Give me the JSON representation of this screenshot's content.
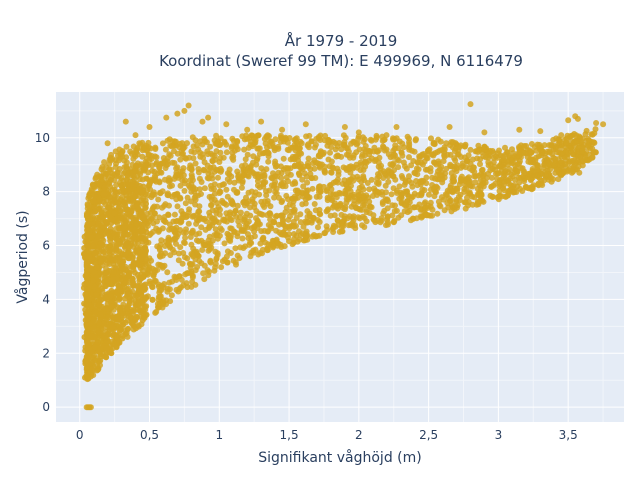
{
  "chart_data": {
    "type": "scatter",
    "title_lines": [
      "År 1979 - 2019",
      "Koordinat (Sweref 99 TM): E 499969, N 6116479"
    ],
    "xlabel": "Signifikant våghöjd (m)",
    "ylabel": "Vågperiod (s)",
    "xlim": [
      -0.17,
      3.9
    ],
    "ylim": [
      -0.55,
      11.7
    ],
    "x_ticks": [
      0,
      0.5,
      1,
      1.5,
      2,
      2.5,
      3,
      3.5
    ],
    "x_tick_labels": [
      "0",
      "0,5",
      "1",
      "1,5",
      "2",
      "2,5",
      "3",
      "3,5"
    ],
    "y_ticks": [
      0,
      2,
      4,
      6,
      8,
      10
    ],
    "y_tick_labels": [
      "0",
      "2",
      "4",
      "6",
      "8",
      "10"
    ],
    "grid": true,
    "marker_color": "#d4a421",
    "background_color": "#e5ecf6",
    "envelope": {
      "x": [
        0.05,
        0.1,
        0.2,
        0.3,
        0.5,
        0.75,
        1.0,
        1.25,
        1.5,
        1.75,
        2.0,
        2.25,
        2.5,
        2.75,
        3.0,
        3.25,
        3.5,
        3.7
      ],
      "y_lower": [
        1.0,
        1.2,
        1.8,
        2.4,
        3.3,
        4.3,
        5.0,
        5.6,
        6.0,
        6.4,
        6.6,
        6.8,
        7.0,
        7.3,
        7.7,
        8.1,
        8.6,
        9.3
      ],
      "y_upper": [
        7.5,
        8.6,
        9.3,
        9.7,
        9.9,
        10.0,
        10.1,
        10.1,
        10.1,
        10.1,
        10.1,
        10.1,
        10.0,
        9.8,
        9.6,
        9.8,
        10.1,
        10.4
      ]
    },
    "points": [
      [
        0.05,
        0
      ],
      [
        0.06,
        0
      ],
      [
        0.07,
        0
      ],
      [
        0.08,
        0
      ],
      [
        0.33,
        10.6
      ],
      [
        0.5,
        10.4
      ],
      [
        0.62,
        10.75
      ],
      [
        0.75,
        11.0
      ],
      [
        0.78,
        11.2
      ],
      [
        0.7,
        10.9
      ],
      [
        0.88,
        10.6
      ],
      [
        0.92,
        10.75
      ],
      [
        1.05,
        10.5
      ],
      [
        1.3,
        10.6
      ],
      [
        1.45,
        10.3
      ],
      [
        1.62,
        10.5
      ],
      [
        1.9,
        10.4
      ],
      [
        2.27,
        10.4
      ],
      [
        2.8,
        11.25
      ],
      [
        2.65,
        10.4
      ],
      [
        3.15,
        10.3
      ],
      [
        3.3,
        10.25
      ],
      [
        3.45,
        10.1
      ],
      [
        3.5,
        10.65
      ],
      [
        3.55,
        10.8
      ],
      [
        3.57,
        10.7
      ],
      [
        3.7,
        10.55
      ],
      [
        3.75,
        10.5
      ],
      [
        3.65,
        9.9
      ],
      [
        3.6,
        9.5
      ],
      [
        3.55,
        9.7
      ],
      [
        3.45,
        9.4
      ],
      [
        3.5,
        8.8
      ],
      [
        3.58,
        8.7
      ],
      [
        2.9,
        10.2
      ],
      [
        2.0,
        10.2
      ],
      [
        1.2,
        10.3
      ],
      [
        0.4,
        10.1
      ],
      [
        0.2,
        9.8
      ]
    ]
  }
}
